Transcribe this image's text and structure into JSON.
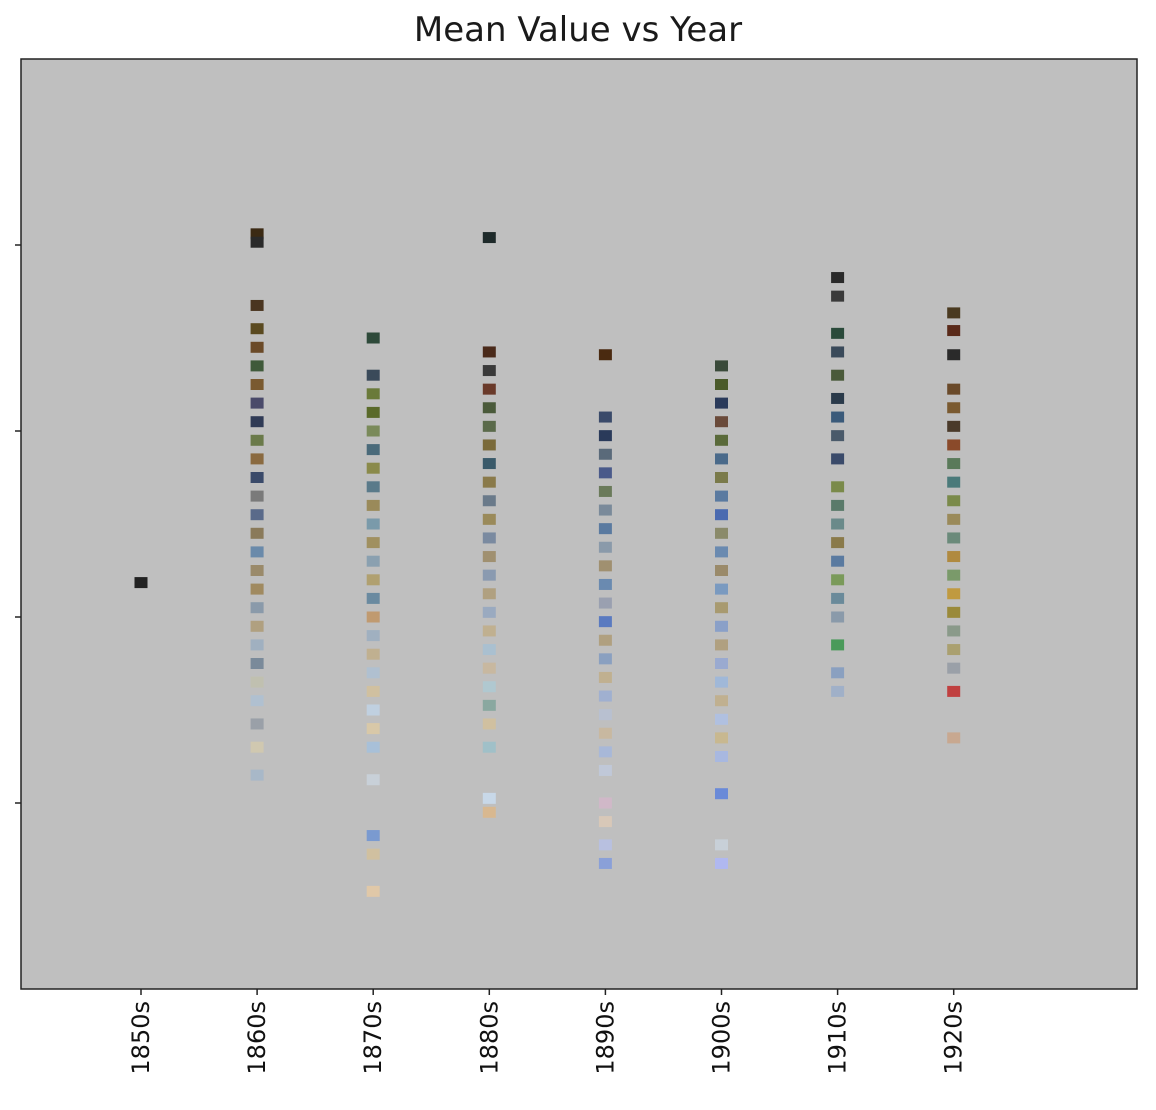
{
  "chart_data": {
    "type": "scatter",
    "title": "Mean Value vs Year",
    "xlabel": "",
    "ylabel": "",
    "x_ticks": [
      "1850s",
      "1860s",
      "1870s",
      "1880s",
      "1890s",
      "1900s",
      "1910s",
      "1920s"
    ],
    "ylim": [
      0,
      10
    ],
    "y_ticks": [
      2,
      4,
      6,
      8
    ],
    "y_tick_labels_shown": false,
    "background_color": "#bfbfbf",
    "grid": false,
    "legend": "none",
    "series": [
      {
        "name": "1850s",
        "points": [
          {
            "y": 4.37,
            "color": "#222222"
          }
        ]
      },
      {
        "name": "1860s",
        "points": [
          {
            "y": 8.12,
            "color": "#3b2a14"
          },
          {
            "y": 8.03,
            "color": "#2a2a2a"
          },
          {
            "y": 7.35,
            "color": "#4a3520"
          },
          {
            "y": 7.1,
            "color": "#5a4a20"
          },
          {
            "y": 6.9,
            "color": "#6b4a28"
          },
          {
            "y": 6.7,
            "color": "#3f5a3a"
          },
          {
            "y": 6.5,
            "color": "#7a5a30"
          },
          {
            "y": 6.3,
            "color": "#4a4a6a"
          },
          {
            "y": 6.1,
            "color": "#2f3a55"
          },
          {
            "y": 5.9,
            "color": "#6a7a4a"
          },
          {
            "y": 5.7,
            "color": "#8a6a40"
          },
          {
            "y": 5.5,
            "color": "#3a4a6a"
          },
          {
            "y": 5.3,
            "color": "#7a7a7a"
          },
          {
            "y": 5.1,
            "color": "#5a6a8a"
          },
          {
            "y": 4.9,
            "color": "#8a7a5a"
          },
          {
            "y": 4.7,
            "color": "#6a8aaa"
          },
          {
            "y": 4.5,
            "color": "#9a8a6a"
          },
          {
            "y": 4.3,
            "color": "#a08a60"
          },
          {
            "y": 4.1,
            "color": "#8a9aaa"
          },
          {
            "y": 3.9,
            "color": "#b0a080"
          },
          {
            "y": 3.7,
            "color": "#a0b0c0"
          },
          {
            "y": 3.5,
            "color": "#7a8a9a"
          },
          {
            "y": 3.3,
            "color": "#c0c0b0"
          },
          {
            "y": 3.1,
            "color": "#b0c0d0"
          },
          {
            "y": 2.85,
            "color": "#9aa0a8"
          },
          {
            "y": 2.6,
            "color": "#d0c8b0"
          },
          {
            "y": 2.3,
            "color": "#a8b8c8"
          }
        ]
      },
      {
        "name": "1870s",
        "points": [
          {
            "y": 7.0,
            "color": "#2e4a3a"
          },
          {
            "y": 6.6,
            "color": "#3a4a5a"
          },
          {
            "y": 6.4,
            "color": "#6a7a3a"
          },
          {
            "y": 6.2,
            "color": "#5a6a2a"
          },
          {
            "y": 6.0,
            "color": "#7a8a5a"
          },
          {
            "y": 5.8,
            "color": "#4a6a7a"
          },
          {
            "y": 5.6,
            "color": "#8a8a4a"
          },
          {
            "y": 5.4,
            "color": "#5a7a8a"
          },
          {
            "y": 5.2,
            "color": "#9a8a5a"
          },
          {
            "y": 5.0,
            "color": "#7a9aaa"
          },
          {
            "y": 4.8,
            "color": "#a09060"
          },
          {
            "y": 4.6,
            "color": "#8aa0b0"
          },
          {
            "y": 4.4,
            "color": "#b0a070"
          },
          {
            "y": 4.2,
            "color": "#6a8aa0"
          },
          {
            "y": 4.0,
            "color": "#c09a70"
          },
          {
            "y": 3.8,
            "color": "#a0b0c0"
          },
          {
            "y": 3.6,
            "color": "#c0b090"
          },
          {
            "y": 3.4,
            "color": "#b0c0d0"
          },
          {
            "y": 3.2,
            "color": "#d0c0a0"
          },
          {
            "y": 3.0,
            "color": "#c0d0e0"
          },
          {
            "y": 2.8,
            "color": "#d8c8a8"
          },
          {
            "y": 2.6,
            "color": "#a8c0d8"
          },
          {
            "y": 2.25,
            "color": "#c8d0d8"
          },
          {
            "y": 1.65,
            "color": "#7a9ad0"
          },
          {
            "y": 1.45,
            "color": "#d0c0a0"
          },
          {
            "y": 1.05,
            "color": "#e0c8a8"
          }
        ]
      },
      {
        "name": "1880s",
        "points": [
          {
            "y": 8.08,
            "color": "#1e2a2a"
          },
          {
            "y": 6.85,
            "color": "#4a2a1a"
          },
          {
            "y": 6.65,
            "color": "#3a3a3a"
          },
          {
            "y": 6.45,
            "color": "#6a3a2a"
          },
          {
            "y": 6.25,
            "color": "#4a5a3a"
          },
          {
            "y": 6.05,
            "color": "#5a6a4a"
          },
          {
            "y": 5.85,
            "color": "#7a6a3a"
          },
          {
            "y": 5.65,
            "color": "#3a5a6a"
          },
          {
            "y": 5.45,
            "color": "#8a7a4a"
          },
          {
            "y": 5.25,
            "color": "#6a7a8a"
          },
          {
            "y": 5.05,
            "color": "#9a8a5a"
          },
          {
            "y": 4.85,
            "color": "#7a8aa0"
          },
          {
            "y": 4.65,
            "color": "#a09070"
          },
          {
            "y": 4.45,
            "color": "#8a9ab0"
          },
          {
            "y": 4.25,
            "color": "#b0a080"
          },
          {
            "y": 4.05,
            "color": "#9aaac0"
          },
          {
            "y": 3.85,
            "color": "#c0b090"
          },
          {
            "y": 3.65,
            "color": "#aac0d0"
          },
          {
            "y": 3.45,
            "color": "#c8b8a0"
          },
          {
            "y": 3.25,
            "color": "#b0c8d0"
          },
          {
            "y": 3.05,
            "color": "#8aa8a0"
          },
          {
            "y": 2.85,
            "color": "#d0c0a0"
          },
          {
            "y": 2.6,
            "color": "#a0c0c8"
          },
          {
            "y": 2.05,
            "color": "#c8d8e8"
          },
          {
            "y": 1.9,
            "color": "#d8b890"
          }
        ]
      },
      {
        "name": "1890s",
        "points": [
          {
            "y": 6.82,
            "color": "#4a2a10"
          },
          {
            "y": 6.15,
            "color": "#3a4a6a"
          },
          {
            "y": 5.95,
            "color": "#2a3a5a"
          },
          {
            "y": 5.75,
            "color": "#5a6a7a"
          },
          {
            "y": 5.55,
            "color": "#4a5a8a"
          },
          {
            "y": 5.35,
            "color": "#6a7a5a"
          },
          {
            "y": 5.15,
            "color": "#7a8a9a"
          },
          {
            "y": 4.95,
            "color": "#5a7aa0"
          },
          {
            "y": 4.75,
            "color": "#8a9aaa"
          },
          {
            "y": 4.55,
            "color": "#a09070"
          },
          {
            "y": 4.35,
            "color": "#6a8ab0"
          },
          {
            "y": 4.15,
            "color": "#9aa0b0"
          },
          {
            "y": 3.95,
            "color": "#5a7ac0"
          },
          {
            "y": 3.75,
            "color": "#b0a080"
          },
          {
            "y": 3.55,
            "color": "#8aa0c0"
          },
          {
            "y": 3.35,
            "color": "#c0b090"
          },
          {
            "y": 3.15,
            "color": "#a0b0d0"
          },
          {
            "y": 2.95,
            "color": "#b8c0d0"
          },
          {
            "y": 2.75,
            "color": "#c8b8a0"
          },
          {
            "y": 2.55,
            "color": "#a8b8d8"
          },
          {
            "y": 2.35,
            "color": "#c0c8d8"
          },
          {
            "y": 2.0,
            "color": "#d0b8c8"
          },
          {
            "y": 1.8,
            "color": "#d8c8b8"
          },
          {
            "y": 1.55,
            "color": "#b8c0e0"
          },
          {
            "y": 1.35,
            "color": "#8aa0d8"
          }
        ]
      },
      {
        "name": "1900s",
        "points": [
          {
            "y": 6.7,
            "color": "#3a4a3a"
          },
          {
            "y": 6.5,
            "color": "#4a5a2a"
          },
          {
            "y": 6.3,
            "color": "#2a3a5a"
          },
          {
            "y": 6.1,
            "color": "#6a4a3a"
          },
          {
            "y": 5.9,
            "color": "#5a6a3a"
          },
          {
            "y": 5.7,
            "color": "#4a6a8a"
          },
          {
            "y": 5.5,
            "color": "#7a7a4a"
          },
          {
            "y": 5.3,
            "color": "#5a7aa0"
          },
          {
            "y": 5.1,
            "color": "#4a6ab0"
          },
          {
            "y": 4.9,
            "color": "#8a8a6a"
          },
          {
            "y": 4.7,
            "color": "#6a8ab0"
          },
          {
            "y": 4.5,
            "color": "#9a8a6a"
          },
          {
            "y": 4.3,
            "color": "#7a9ac0"
          },
          {
            "y": 4.1,
            "color": "#a89a70"
          },
          {
            "y": 3.9,
            "color": "#8aa0c8"
          },
          {
            "y": 3.7,
            "color": "#b0a080"
          },
          {
            "y": 3.5,
            "color": "#9aaad0"
          },
          {
            "y": 3.3,
            "color": "#a0b8d8"
          },
          {
            "y": 3.1,
            "color": "#c0b090"
          },
          {
            "y": 2.9,
            "color": "#b0c0e0"
          },
          {
            "y": 2.7,
            "color": "#c8b890"
          },
          {
            "y": 2.5,
            "color": "#a8b8e0"
          },
          {
            "y": 2.1,
            "color": "#6a8ad8"
          },
          {
            "y": 1.55,
            "color": "#c8d0d8"
          },
          {
            "y": 1.35,
            "color": "#b0b8f0"
          }
        ]
      },
      {
        "name": "1910s",
        "points": [
          {
            "y": 7.65,
            "color": "#2a2a2a"
          },
          {
            "y": 7.45,
            "color": "#3a3a3a"
          },
          {
            "y": 7.05,
            "color": "#2a4a3a"
          },
          {
            "y": 6.85,
            "color": "#3a4a5a"
          },
          {
            "y": 6.6,
            "color": "#4a5a3a"
          },
          {
            "y": 6.35,
            "color": "#2a3a4a"
          },
          {
            "y": 6.15,
            "color": "#3a5a7a"
          },
          {
            "y": 5.95,
            "color": "#4a5a6a"
          },
          {
            "y": 5.7,
            "color": "#3a4a6a"
          },
          {
            "y": 5.4,
            "color": "#7a8a4a"
          },
          {
            "y": 5.2,
            "color": "#5a7a6a"
          },
          {
            "y": 5.0,
            "color": "#6a8a8a"
          },
          {
            "y": 4.8,
            "color": "#8a7a4a"
          },
          {
            "y": 4.6,
            "color": "#5a7aa0"
          },
          {
            "y": 4.4,
            "color": "#7a9a5a"
          },
          {
            "y": 4.2,
            "color": "#6a8a9a"
          },
          {
            "y": 4.0,
            "color": "#8a9aaa"
          },
          {
            "y": 3.7,
            "color": "#4a9a5a"
          },
          {
            "y": 3.4,
            "color": "#8aa0c0"
          },
          {
            "y": 3.2,
            "color": "#a0b0c8"
          }
        ]
      },
      {
        "name": "1920s",
        "points": [
          {
            "y": 7.27,
            "color": "#4a3a20"
          },
          {
            "y": 7.08,
            "color": "#5a2a1a"
          },
          {
            "y": 6.82,
            "color": "#2a2a2a"
          },
          {
            "y": 6.45,
            "color": "#6a4a2a"
          },
          {
            "y": 6.25,
            "color": "#7a5a30"
          },
          {
            "y": 6.05,
            "color": "#4a3a2a"
          },
          {
            "y": 5.85,
            "color": "#8a4a2a"
          },
          {
            "y": 5.65,
            "color": "#5a7a5a"
          },
          {
            "y": 5.45,
            "color": "#4a7a7a"
          },
          {
            "y": 5.25,
            "color": "#7a8a4a"
          },
          {
            "y": 5.05,
            "color": "#9a8a5a"
          },
          {
            "y": 4.85,
            "color": "#6a8a7a"
          },
          {
            "y": 4.65,
            "color": "#b08a40"
          },
          {
            "y": 4.45,
            "color": "#7a9a6a"
          },
          {
            "y": 4.25,
            "color": "#c09a40"
          },
          {
            "y": 4.05,
            "color": "#9a8a3a"
          },
          {
            "y": 3.85,
            "color": "#8a9a8a"
          },
          {
            "y": 3.65,
            "color": "#aaa070"
          },
          {
            "y": 3.45,
            "color": "#9aa0a8"
          },
          {
            "y": 3.2,
            "color": "#c04040"
          },
          {
            "y": 2.7,
            "color": "#c8a890"
          }
        ]
      }
    ]
  }
}
